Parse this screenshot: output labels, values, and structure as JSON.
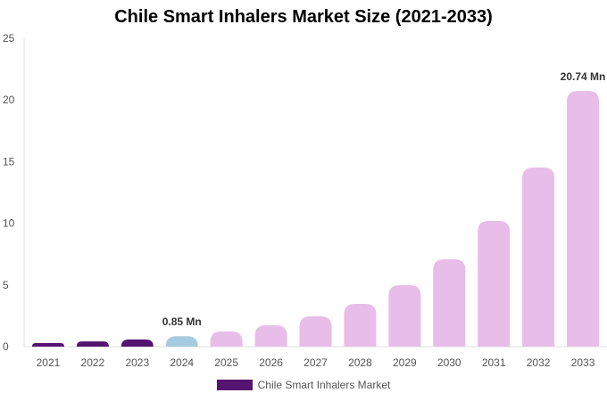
{
  "chart_data": {
    "type": "bar",
    "title": "Chile Smart Inhalers Market Size (2021-2033)",
    "categories": [
      "2021",
      "2022",
      "2023",
      "2024",
      "2025",
      "2026",
      "2027",
      "2028",
      "2029",
      "2030",
      "2031",
      "2032",
      "2033"
    ],
    "series": [
      {
        "name": "Chile Smart Inhalers Market",
        "values": [
          0.29,
          0.42,
          0.58,
          0.85,
          1.23,
          1.73,
          2.46,
          3.47,
          4.99,
          7.08,
          10.19,
          14.52,
          20.74
        ]
      }
    ],
    "bar_colors": [
      "#541470",
      "#541470",
      "#541470",
      "#a6cbe0",
      "#e8bde9",
      "#e8bde9",
      "#e8bde9",
      "#e8bde9",
      "#e8bde9",
      "#e8bde9",
      "#e8bde9",
      "#e8bde9",
      "#e8bde9"
    ],
    "data_labels": {
      "3": "0.85 Mn",
      "12": "20.74 Mn"
    },
    "yticks": [
      0,
      5,
      10,
      15,
      20,
      25
    ],
    "ylim": [
      0,
      25
    ],
    "xlabel": "",
    "ylabel": "",
    "grid": false,
    "legend_position": "bottom",
    "legend_color": "#541470"
  }
}
